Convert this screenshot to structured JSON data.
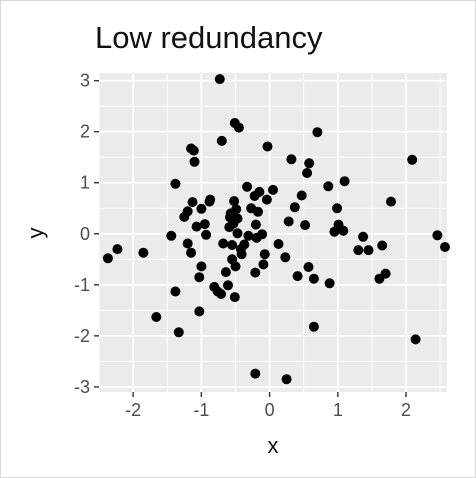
{
  "chart_data": {
    "type": "scatter",
    "title": "Low redundancy",
    "xlabel": "x",
    "ylabel": "y",
    "xlim": [
      -2.5,
      2.6
    ],
    "ylim": [
      -3.1,
      3.15
    ],
    "x_ticks": [
      -2,
      -1,
      0,
      1,
      2
    ],
    "x_tick_labels": [
      "-2",
      "-1",
      "0",
      "1",
      "2"
    ],
    "y_ticks": [
      -3,
      -2,
      -1,
      0,
      1,
      2,
      3
    ],
    "y_tick_labels": [
      "-3",
      "-2",
      "-1",
      "0",
      "1",
      "2",
      "3"
    ],
    "grid": true,
    "panel_color": "#ebebeb",
    "point_color": "#000000",
    "points": [
      [
        -2.37,
        -0.48
      ],
      [
        -2.23,
        -0.3
      ],
      [
        -1.85,
        -0.37
      ],
      [
        -1.66,
        -1.63
      ],
      [
        -1.44,
        -0.04
      ],
      [
        -1.38,
        0.98
      ],
      [
        -1.38,
        -1.13
      ],
      [
        -1.33,
        -1.93
      ],
      [
        -1.25,
        0.33
      ],
      [
        -1.2,
        0.44
      ],
      [
        -1.2,
        -0.19
      ],
      [
        -1.15,
        -0.37
      ],
      [
        -1.15,
        1.67
      ],
      [
        -1.13,
        0.62
      ],
      [
        -1.11,
        1.63
      ],
      [
        -1.1,
        1.41
      ],
      [
        -1.07,
        0.14
      ],
      [
        -1.03,
        -0.85
      ],
      [
        -1.03,
        -1.52
      ],
      [
        -1.0,
        0.49
      ],
      [
        -1.0,
        -0.64
      ],
      [
        -0.95,
        0.19
      ],
      [
        -0.93,
        -0.02
      ],
      [
        -0.88,
        0.63
      ],
      [
        -0.87,
        0.67
      ],
      [
        -0.81,
        -1.04
      ],
      [
        -0.76,
        -1.13
      ],
      [
        -0.73,
        3.03
      ],
      [
        -0.71,
        -1.18
      ],
      [
        -0.7,
        1.82
      ],
      [
        -0.68,
        -0.19
      ],
      [
        -0.64,
        -0.75
      ],
      [
        -0.61,
        -1.01
      ],
      [
        -0.59,
        0.13
      ],
      [
        -0.58,
        0.32
      ],
      [
        -0.57,
        0.4
      ],
      [
        -0.55,
        -0.5
      ],
      [
        -0.55,
        -0.22
      ],
      [
        -0.53,
        0.2
      ],
      [
        -0.52,
        0.64
      ],
      [
        -0.51,
        -1.24
      ],
      [
        -0.51,
        2.17
      ],
      [
        -0.5,
        -0.64
      ],
      [
        -0.49,
        0.48
      ],
      [
        -0.47,
        0.01
      ],
      [
        -0.47,
        0.3
      ],
      [
        -0.45,
        2.08
      ],
      [
        -0.42,
        -0.3
      ],
      [
        -0.41,
        -0.4
      ],
      [
        -0.37,
        -0.21
      ],
      [
        -0.33,
        0.92
      ],
      [
        -0.31,
        -0.04
      ],
      [
        -0.27,
        0.5
      ],
      [
        -0.22,
        0.74
      ],
      [
        -0.21,
        -0.76
      ],
      [
        -0.21,
        -2.74
      ],
      [
        -0.2,
        0.18
      ],
      [
        -0.19,
        -0.08
      ],
      [
        -0.17,
        0.43
      ],
      [
        -0.15,
        0.82
      ],
      [
        -0.11,
        -0.01
      ],
      [
        -0.09,
        -0.6
      ],
      [
        -0.07,
        -0.4
      ],
      [
        -0.04,
        0.67
      ],
      [
        -0.03,
        1.71
      ],
      [
        0.05,
        0.86
      ],
      [
        0.13,
        -0.2
      ],
      [
        0.23,
        -0.46
      ],
      [
        0.25,
        -2.85
      ],
      [
        0.28,
        0.24
      ],
      [
        0.32,
        1.46
      ],
      [
        0.37,
        0.52
      ],
      [
        0.41,
        -0.83
      ],
      [
        0.47,
        0.75
      ],
      [
        0.52,
        0.17
      ],
      [
        0.55,
        1.19
      ],
      [
        0.57,
        -0.65
      ],
      [
        0.58,
        1.38
      ],
      [
        0.65,
        -0.88
      ],
      [
        0.65,
        -1.82
      ],
      [
        0.7,
        1.99
      ],
      [
        0.86,
        0.93
      ],
      [
        0.88,
        -0.97
      ],
      [
        0.95,
        0.04
      ],
      [
        0.99,
        0.5
      ],
      [
        1.01,
        0.18
      ],
      [
        1.08,
        0.06
      ],
      [
        1.1,
        1.03
      ],
      [
        1.3,
        -0.32
      ],
      [
        1.37,
        -0.06
      ],
      [
        1.45,
        -0.32
      ],
      [
        1.61,
        -0.88
      ],
      [
        1.65,
        -0.23
      ],
      [
        1.7,
        -0.78
      ],
      [
        1.78,
        0.63
      ],
      [
        2.09,
        1.45
      ],
      [
        2.14,
        -2.07
      ],
      [
        2.46,
        -0.03
      ],
      [
        2.57,
        -0.26
      ]
    ]
  }
}
